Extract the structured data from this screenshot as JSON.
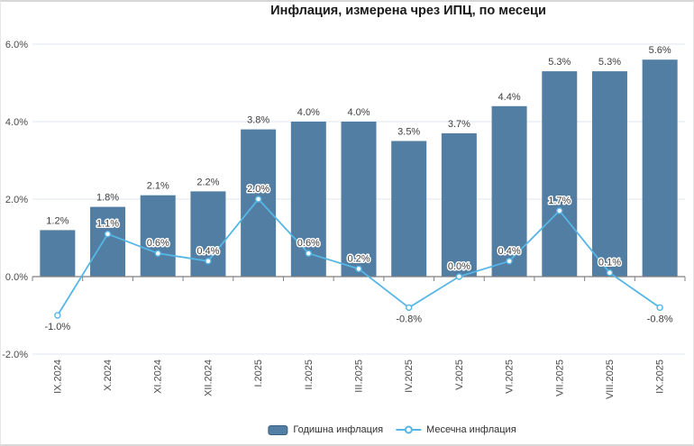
{
  "chart_data": {
    "type": "bar",
    "subtype": "combo-bar-line",
    "title": "Инфлация, измерена чрез ИПЦ, по месеци",
    "categories": [
      "IX.2024",
      "X.2024",
      "XI.2024",
      "XII.2024",
      "I.2025",
      "II.2025",
      "III.2025",
      "IV.2025",
      "V.2025",
      "VI.2025",
      "VII.2025",
      "VIII.2025",
      "IX.2025"
    ],
    "series": [
      {
        "name": "Годишна инфлация",
        "type": "bar",
        "color": "#527ea3",
        "values": [
          1.2,
          1.8,
          2.1,
          2.2,
          3.8,
          4.0,
          4.0,
          3.5,
          3.7,
          4.4,
          5.3,
          5.3,
          5.6
        ],
        "labels": [
          "1.2%",
          "1.8%",
          "2.1%",
          "2.2%",
          "3.8%",
          "4.0%",
          "4.0%",
          "3.5%",
          "3.7%",
          "4.4%",
          "5.3%",
          "5.3%",
          "5.6%"
        ]
      },
      {
        "name": "Месечна инфлация",
        "type": "line",
        "color": "#56b6e6",
        "values": [
          -1.0,
          1.1,
          0.6,
          0.4,
          2.0,
          0.6,
          0.2,
          -0.8,
          0.0,
          0.4,
          1.7,
          0.1,
          -0.8
        ],
        "labels": [
          "-1.0%",
          "1.1%",
          "0.6%",
          "0.4%",
          "2.0%",
          "0.6%",
          "0.2%",
          "-0.8%",
          "0.0%",
          "0.4%",
          "1.7%",
          "0.1%",
          "-0.8%"
        ]
      }
    ],
    "y_axis": {
      "min": -2,
      "max": 6,
      "ticks": [
        {
          "value": 6,
          "label": "6.0%"
        },
        {
          "value": 4,
          "label": "4.0%"
        },
        {
          "value": 2,
          "label": "2.0%"
        },
        {
          "value": 0,
          "label": "0.0%"
        },
        {
          "value": -2,
          "label": "-2.0%"
        }
      ],
      "grid": true
    },
    "x_axis": {
      "label_rotation": -90
    },
    "legend": {
      "position": "bottom"
    }
  }
}
